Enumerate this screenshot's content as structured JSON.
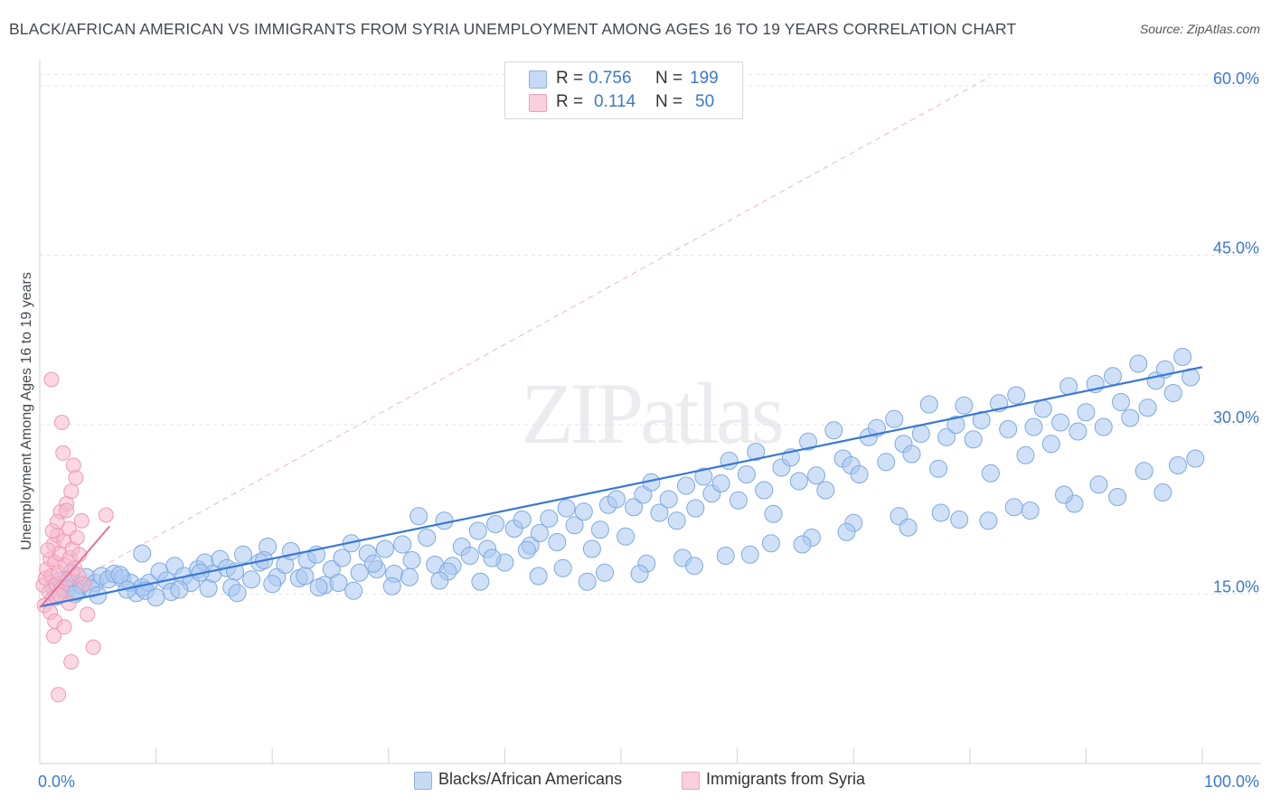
{
  "title": "BLACK/AFRICAN AMERICAN VS IMMIGRANTS FROM SYRIA UNEMPLOYMENT AMONG AGES 16 TO 19 YEARS CORRELATION CHART",
  "source": "Source: ZipAtlas.com",
  "watermark": "ZIPatlas",
  "legend": {
    "r_label": "R =",
    "n_label": "N =",
    "rows": [
      {
        "r": "0.756",
        "n": "199",
        "color": "#a9c8f0"
      },
      {
        "r": "0.114",
        "n": "50",
        "color": "#f7b8cc"
      }
    ]
  },
  "bottom_legend": [
    {
      "label": "Blacks/African Americans",
      "color": "#a9c8f0"
    },
    {
      "label": "Immigrants from Syria",
      "color": "#f7b8cc"
    }
  ],
  "colors": {
    "blue": "#3a78d4",
    "blue_fill": "#a9c8f0",
    "pink": "#e8709a",
    "pink_fill": "#f7b8cc",
    "grid": "#e2e5e8"
  },
  "chart_data": {
    "type": "scatter",
    "title": "BLACK/AFRICAN AMERICAN VS IMMIGRANTS FROM SYRIA UNEMPLOYMENT AMONG AGES 16 TO 19 YEARS CORRELATION CHART",
    "xlabel": "",
    "ylabel": "Unemployment Among Ages 16 to 19 years",
    "xlim": [
      0,
      100
    ],
    "ylim": [
      0,
      62
    ],
    "x_tick_labels": [
      "0.0%",
      "100.0%"
    ],
    "y_tick_labels": [
      "15.0%",
      "30.0%",
      "45.0%",
      "60.0%"
    ],
    "y_ticks": [
      15,
      30,
      45,
      60
    ],
    "series": [
      {
        "name": "Blacks/African Americans",
        "r": 0.756,
        "n": 199,
        "trend": {
          "x": [
            0,
            100
          ],
          "y": [
            13.9,
            35.1
          ]
        },
        "points": [
          [
            1.2,
            15.6
          ],
          [
            1.8,
            16.2
          ],
          [
            2.3,
            15.4
          ],
          [
            2.6,
            16.0
          ],
          [
            3.2,
            15.2
          ],
          [
            3.6,
            15.8
          ],
          [
            4.0,
            16.5
          ],
          [
            4.8,
            16.0
          ],
          [
            5.3,
            16.6
          ],
          [
            5.9,
            16.3
          ],
          [
            6.4,
            16.8
          ],
          [
            7.1,
            16.4
          ],
          [
            7.8,
            16.0
          ],
          [
            8.3,
            15.1
          ],
          [
            8.8,
            15.6
          ],
          [
            9.4,
            16.0
          ],
          [
            10.3,
            17.0
          ],
          [
            10.9,
            16.2
          ],
          [
            11.6,
            17.5
          ],
          [
            12.4,
            16.6
          ],
          [
            13.0,
            16.0
          ],
          [
            13.6,
            17.2
          ],
          [
            14.2,
            17.8
          ],
          [
            14.9,
            16.8
          ],
          [
            15.5,
            18.1
          ],
          [
            16.1,
            17.3
          ],
          [
            16.8,
            17.0
          ],
          [
            17.5,
            18.5
          ],
          [
            18.2,
            16.3
          ],
          [
            18.9,
            17.8
          ],
          [
            19.6,
            19.2
          ],
          [
            20.4,
            16.5
          ],
          [
            21.1,
            17.6
          ],
          [
            21.6,
            18.8
          ],
          [
            22.3,
            16.4
          ],
          [
            23.0,
            18.0
          ],
          [
            23.8,
            18.5
          ],
          [
            24.5,
            15.8
          ],
          [
            25.1,
            17.2
          ],
          [
            26.0,
            18.2
          ],
          [
            26.8,
            19.5
          ],
          [
            27.5,
            16.9
          ],
          [
            28.2,
            18.6
          ],
          [
            29.0,
            17.2
          ],
          [
            29.7,
            19.0
          ],
          [
            30.5,
            16.8
          ],
          [
            31.2,
            19.4
          ],
          [
            32.0,
            18.0
          ],
          [
            32.6,
            21.9
          ],
          [
            33.3,
            20.0
          ],
          [
            34.0,
            17.6
          ],
          [
            34.8,
            21.5
          ],
          [
            35.5,
            17.5
          ],
          [
            36.3,
            19.2
          ],
          [
            37.0,
            18.4
          ],
          [
            37.7,
            20.6
          ],
          [
            38.5,
            19.0
          ],
          [
            39.2,
            21.2
          ],
          [
            40.0,
            17.8
          ],
          [
            40.8,
            20.8
          ],
          [
            41.5,
            21.6
          ],
          [
            42.2,
            19.3
          ],
          [
            43.0,
            20.4
          ],
          [
            43.8,
            21.7
          ],
          [
            44.5,
            19.6
          ],
          [
            45.3,
            22.6
          ],
          [
            46.0,
            21.1
          ],
          [
            46.8,
            22.3
          ],
          [
            47.5,
            19.0
          ],
          [
            48.2,
            20.7
          ],
          [
            48.9,
            22.9
          ],
          [
            49.6,
            23.4
          ],
          [
            50.4,
            20.1
          ],
          [
            51.1,
            22.7
          ],
          [
            51.9,
            23.8
          ],
          [
            52.6,
            24.9
          ],
          [
            53.3,
            22.2
          ],
          [
            54.1,
            23.4
          ],
          [
            54.8,
            21.5
          ],
          [
            55.6,
            24.6
          ],
          [
            56.4,
            22.6
          ],
          [
            57.1,
            25.4
          ],
          [
            57.8,
            23.9
          ],
          [
            58.6,
            24.8
          ],
          [
            59.3,
            26.8
          ],
          [
            60.1,
            23.3
          ],
          [
            60.8,
            25.6
          ],
          [
            61.6,
            27.6
          ],
          [
            62.3,
            24.2
          ],
          [
            63.1,
            22.1
          ],
          [
            63.8,
            26.2
          ],
          [
            64.6,
            27.1
          ],
          [
            65.3,
            25.0
          ],
          [
            66.1,
            28.5
          ],
          [
            66.8,
            25.5
          ],
          [
            67.6,
            24.2
          ],
          [
            68.3,
            29.5
          ],
          [
            69.1,
            27.0
          ],
          [
            69.8,
            26.4
          ],
          [
            70.5,
            25.6
          ],
          [
            71.3,
            28.9
          ],
          [
            72.0,
            29.7
          ],
          [
            72.8,
            26.7
          ],
          [
            73.5,
            30.5
          ],
          [
            74.3,
            28.3
          ],
          [
            75.0,
            27.4
          ],
          [
            75.8,
            29.2
          ],
          [
            76.5,
            31.8
          ],
          [
            77.3,
            26.1
          ],
          [
            78.0,
            28.9
          ],
          [
            78.8,
            30.0
          ],
          [
            79.5,
            31.7
          ],
          [
            80.3,
            28.7
          ],
          [
            81.0,
            30.4
          ],
          [
            81.8,
            25.7
          ],
          [
            82.5,
            31.9
          ],
          [
            83.3,
            29.6
          ],
          [
            84.0,
            32.6
          ],
          [
            84.8,
            27.3
          ],
          [
            85.5,
            29.8
          ],
          [
            86.3,
            31.4
          ],
          [
            87.0,
            28.3
          ],
          [
            87.8,
            30.2
          ],
          [
            88.5,
            33.4
          ],
          [
            89.3,
            29.4
          ],
          [
            90.0,
            31.1
          ],
          [
            90.8,
            33.6
          ],
          [
            91.5,
            29.8
          ],
          [
            92.3,
            34.3
          ],
          [
            93.0,
            32.0
          ],
          [
            93.8,
            30.6
          ],
          [
            94.5,
            35.4
          ],
          [
            95.3,
            31.5
          ],
          [
            96.0,
            33.9
          ],
          [
            96.8,
            34.9
          ],
          [
            97.5,
            32.8
          ],
          [
            98.3,
            36.0
          ],
          [
            99.0,
            34.2
          ],
          [
            2.7,
            16.9
          ],
          [
            4.4,
            15.5
          ],
          [
            6.9,
            16.7
          ],
          [
            9.1,
            15.3
          ],
          [
            11.3,
            15.2
          ],
          [
            13.8,
            16.9
          ],
          [
            16.5,
            15.6
          ],
          [
            19.3,
            18.0
          ],
          [
            22.8,
            16.6
          ],
          [
            25.7,
            16.0
          ],
          [
            28.7,
            17.7
          ],
          [
            31.8,
            16.5
          ],
          [
            35.1,
            17.0
          ],
          [
            38.9,
            18.2
          ],
          [
            41.9,
            18.9
          ],
          [
            45.0,
            17.3
          ],
          [
            48.6,
            16.9
          ],
          [
            52.2,
            17.7
          ],
          [
            55.3,
            18.2
          ],
          [
            59.0,
            18.4
          ],
          [
            62.9,
            19.5
          ],
          [
            66.4,
            20.0
          ],
          [
            70.0,
            21.3
          ],
          [
            73.9,
            21.9
          ],
          [
            77.5,
            22.2
          ],
          [
            81.6,
            21.5
          ],
          [
            85.2,
            22.4
          ],
          [
            89.0,
            23.0
          ],
          [
            92.7,
            23.6
          ],
          [
            96.6,
            24.0
          ],
          [
            1.5,
            14.8
          ],
          [
            3.0,
            15.0
          ],
          [
            5.0,
            14.9
          ],
          [
            7.5,
            15.4
          ],
          [
            10.0,
            14.7
          ],
          [
            12.0,
            15.4
          ],
          [
            14.5,
            15.5
          ],
          [
            17.0,
            15.1
          ],
          [
            20.0,
            15.9
          ],
          [
            24.0,
            15.6
          ],
          [
            27.0,
            15.3
          ],
          [
            30.3,
            15.7
          ],
          [
            34.4,
            16.2
          ],
          [
            37.9,
            16.1
          ],
          [
            42.9,
            16.6
          ],
          [
            47.1,
            16.1
          ],
          [
            51.6,
            16.8
          ],
          [
            56.3,
            17.5
          ],
          [
            61.1,
            18.5
          ],
          [
            65.6,
            19.4
          ],
          [
            69.4,
            20.5
          ],
          [
            74.7,
            20.9
          ],
          [
            79.1,
            21.6
          ],
          [
            83.8,
            22.7
          ],
          [
            88.1,
            23.8
          ],
          [
            91.1,
            24.7
          ],
          [
            95.0,
            25.9
          ],
          [
            97.9,
            26.4
          ],
          [
            99.4,
            27.0
          ],
          [
            8.8,
            18.6
          ]
        ]
      },
      {
        "name": "Immigrants from Syria",
        "r": 0.114,
        "n": 50,
        "trend": {
          "x": [
            0,
            6
          ],
          "y": [
            13.8,
            21.0
          ]
        },
        "points": [
          [
            0.3,
            15.8
          ],
          [
            0.5,
            16.4
          ],
          [
            0.6,
            17.2
          ],
          [
            0.8,
            15.2
          ],
          [
            0.9,
            18.1
          ],
          [
            1.0,
            16.6
          ],
          [
            1.1,
            14.6
          ],
          [
            1.2,
            19.4
          ],
          [
            1.3,
            17.8
          ],
          [
            1.4,
            15.9
          ],
          [
            1.5,
            20.2
          ],
          [
            1.6,
            16.9
          ],
          [
            1.7,
            18.6
          ],
          [
            1.8,
            22.3
          ],
          [
            1.9,
            15.5
          ],
          [
            2.0,
            27.5
          ],
          [
            2.1,
            19.7
          ],
          [
            2.2,
            17.6
          ],
          [
            2.3,
            23.0
          ],
          [
            2.4,
            16.3
          ],
          [
            2.5,
            20.8
          ],
          [
            2.6,
            18.2
          ],
          [
            2.7,
            24.1
          ],
          [
            2.8,
            19.0
          ],
          [
            2.9,
            26.4
          ],
          [
            3.0,
            17.3
          ],
          [
            3.2,
            20.0
          ],
          [
            3.4,
            18.5
          ],
          [
            3.6,
            21.5
          ],
          [
            3.8,
            15.9
          ],
          [
            0.4,
            14.0
          ],
          [
            0.7,
            18.9
          ],
          [
            0.9,
            13.4
          ],
          [
            1.1,
            20.6
          ],
          [
            1.3,
            12.6
          ],
          [
            1.5,
            21.4
          ],
          [
            1.7,
            14.9
          ],
          [
            1.9,
            30.2
          ],
          [
            2.1,
            12.1
          ],
          [
            2.3,
            22.4
          ],
          [
            2.5,
            14.2
          ],
          [
            2.7,
            9.0
          ],
          [
            1.0,
            34.0
          ],
          [
            1.6,
            6.1
          ],
          [
            1.2,
            11.3
          ],
          [
            3.1,
            25.3
          ],
          [
            3.3,
            16.7
          ],
          [
            4.1,
            13.2
          ],
          [
            4.6,
            10.3
          ],
          [
            5.7,
            22.0
          ]
        ]
      }
    ]
  }
}
